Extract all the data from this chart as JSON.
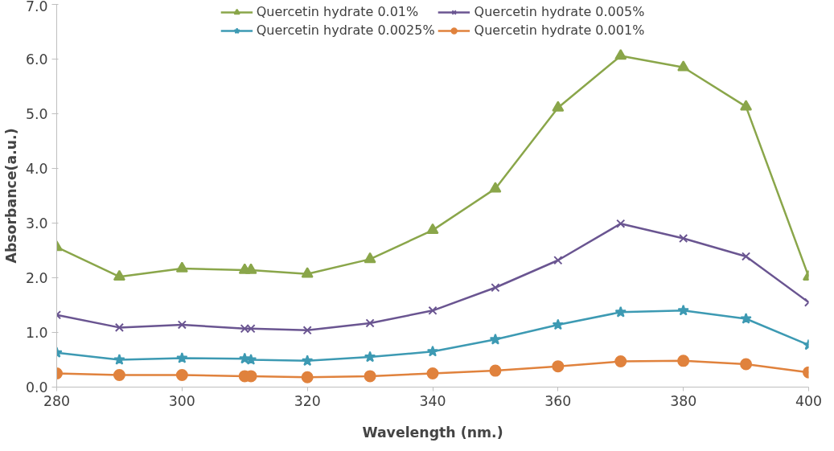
{
  "chart_data": {
    "type": "line",
    "xlabel": "Wavelength (nm.)",
    "ylabel": "Absorbance(a.u.)",
    "x": [
      280,
      290,
      300,
      310,
      311,
      320,
      330,
      340,
      350,
      360,
      370,
      380,
      390,
      400
    ],
    "series": [
      {
        "name": "Quercetin hydrate 0.01%",
        "color": "#8aa64a",
        "marker": "triangle",
        "values": [
          2.56,
          2.02,
          2.17,
          2.14,
          2.14,
          2.07,
          2.34,
          2.87,
          3.63,
          5.11,
          6.06,
          5.85,
          5.13,
          2.02
        ]
      },
      {
        "name": "Quercetin hydrate 0.005%",
        "color": "#6a5591",
        "marker": "cross",
        "values": [
          1.32,
          1.09,
          1.14,
          1.07,
          1.07,
          1.04,
          1.17,
          1.4,
          1.82,
          2.32,
          2.99,
          2.72,
          2.39,
          1.55
        ]
      },
      {
        "name": "Quercetin hydrate 0.0025%",
        "color": "#3d9ab3",
        "marker": "star",
        "values": [
          0.63,
          0.5,
          0.53,
          0.52,
          0.5,
          0.48,
          0.55,
          0.65,
          0.87,
          1.14,
          1.37,
          1.4,
          1.25,
          0.77
        ]
      },
      {
        "name": "Quercetin hydrate 0.001%",
        "color": "#e0823d",
        "marker": "circle",
        "values": [
          0.25,
          0.22,
          0.22,
          0.2,
          0.2,
          0.18,
          0.2,
          0.25,
          0.3,
          0.38,
          0.47,
          0.48,
          0.42,
          0.27
        ]
      }
    ],
    "xlim": [
      280,
      400
    ],
    "xticks": [
      280,
      300,
      320,
      340,
      360,
      380,
      400
    ],
    "ylim": [
      0,
      7
    ],
    "yticks": [
      {
        "value": 0,
        "label": "0.0"
      },
      {
        "value": 1,
        "label": "1.0"
      },
      {
        "value": 2,
        "label": "2.0"
      },
      {
        "value": 3,
        "label": "3.0"
      },
      {
        "value": 4,
        "label": "4.0"
      },
      {
        "value": 5,
        "label": "5.0"
      },
      {
        "value": 6,
        "label": "6.0"
      },
      {
        "value": 7,
        "label": "7.0"
      }
    ],
    "grid": false,
    "legend": "top",
    "line_style": "solid"
  }
}
